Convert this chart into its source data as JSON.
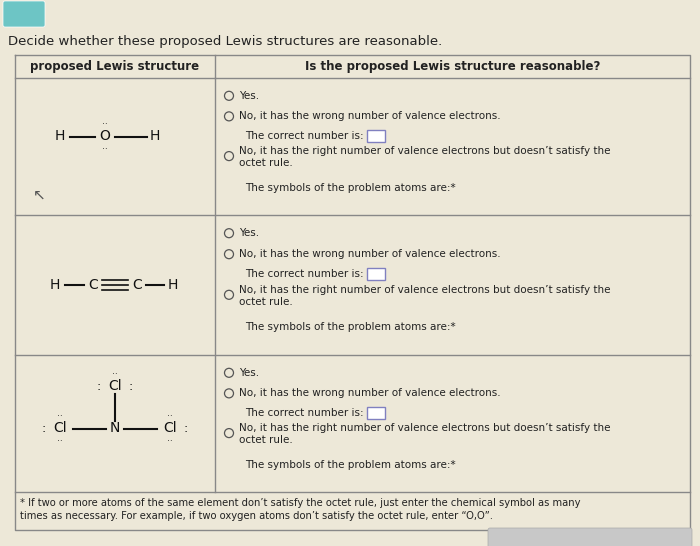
{
  "title": "Decide whether these proposed Lewis structures are reasonable.",
  "bg_color": "#ede8d8",
  "table_border_color": "#888888",
  "text_color": "#222222",
  "col1_header": "proposed Lewis structure",
  "col2_header": "Is the proposed Lewis structure reasonable?",
  "radio_options_row": [
    [
      "Yes.",
      true
    ],
    [
      "No, it has the wrong number of valence electrons.",
      true
    ],
    [
      "The correct number is:",
      false
    ],
    [
      "No, it has the right number of valence electrons but doesn’t satisfy the\noctet rule.",
      true
    ],
    [
      "The symbols of the problem atoms are:*",
      false
    ]
  ],
  "footnote_line1": "* If two or more atoms of the same element don’t satisfy the octet rule, just enter the chemical symbol as many",
  "footnote_line2": "times as necessary. For example, if two oxygen atoms don’t satisfy the octet rule, enter “O,O”.",
  "teal_btn_color": "#6dc5c5",
  "input_box_color": "#8080c0"
}
